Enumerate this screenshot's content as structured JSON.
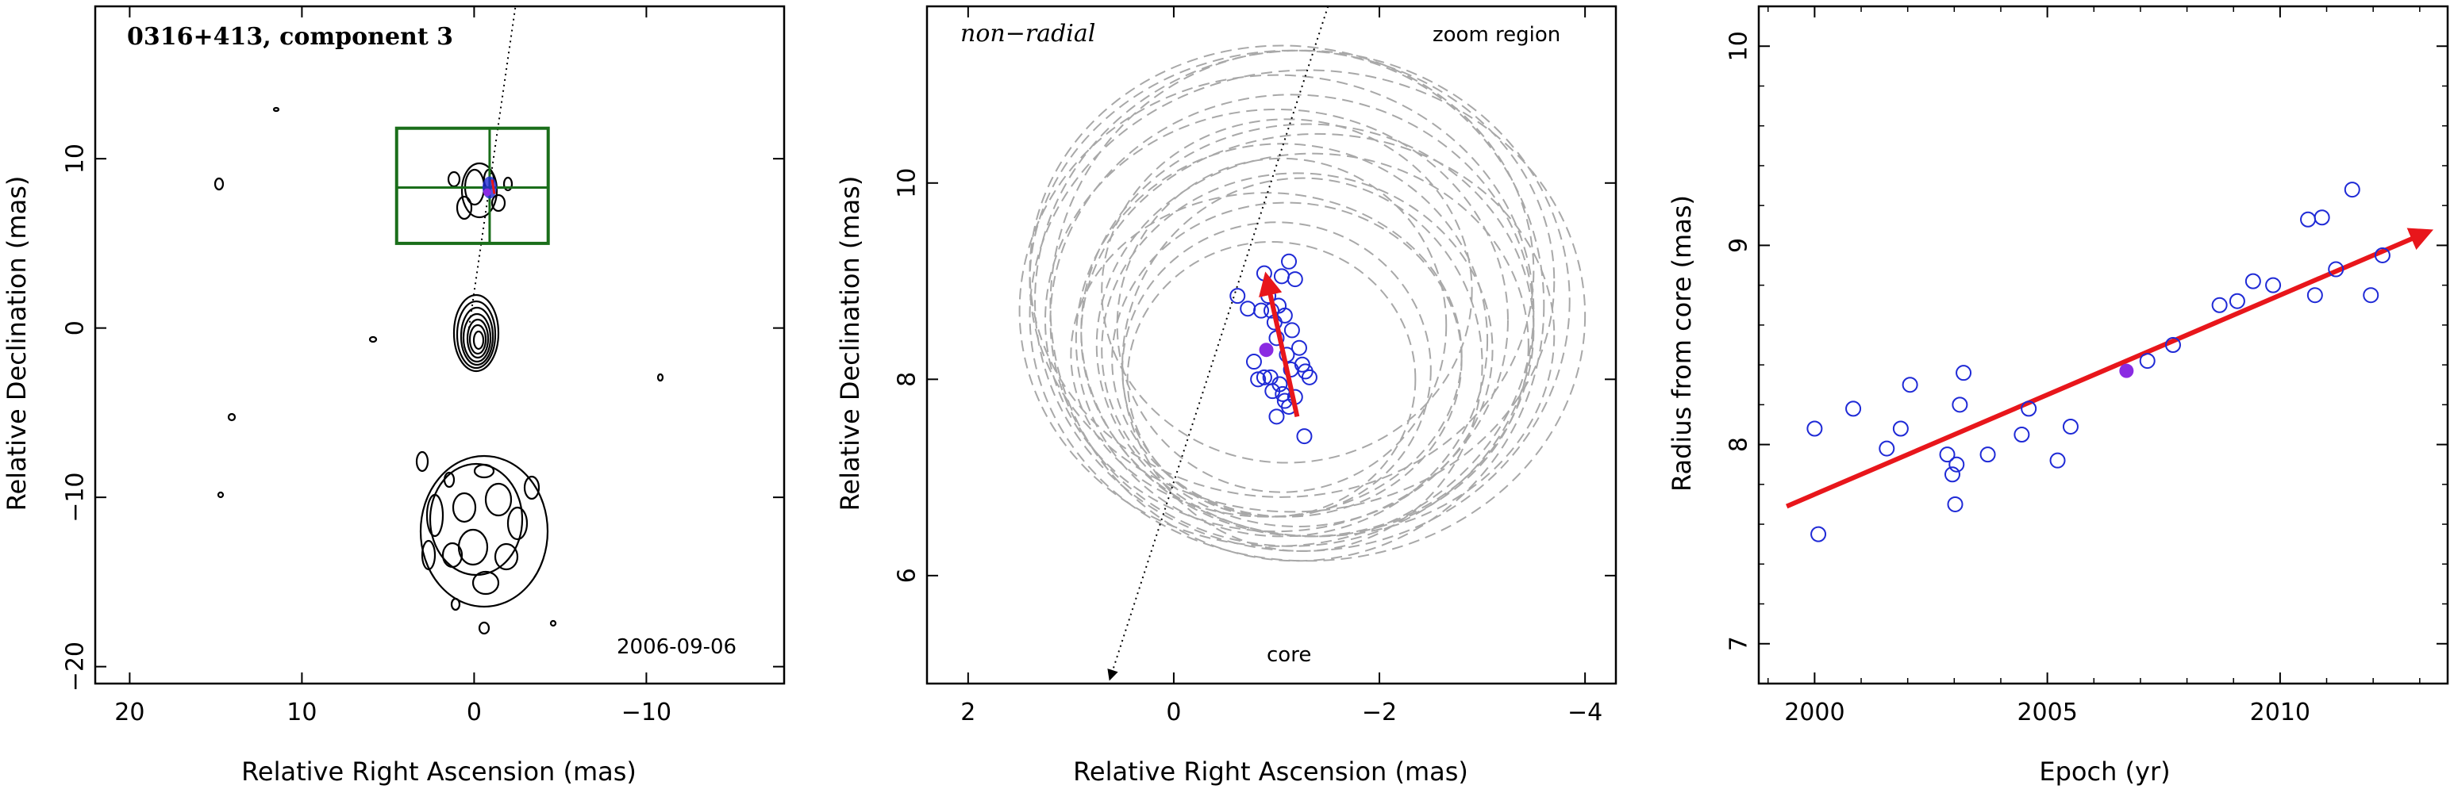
{
  "colors": {
    "axis": "#000000",
    "contour": "#000000",
    "zoom_box": "#1a6e1a",
    "open_points": "#1f2ad6",
    "filled_point": "#8a2be2",
    "arrow": "#e8161b",
    "circles": "#a8a8a8",
    "ridge_line": "#000000"
  },
  "chart_data": [
    {
      "type": "contour",
      "title": "0316+413, component 3",
      "date_label": "2006-09-06",
      "xlabel": "Relative Right Ascension (mas)",
      "ylabel": "Relative Declination (mas)",
      "xlim": [
        22,
        -18
      ],
      "ylim": [
        -21,
        19
      ],
      "xticks": [
        20,
        10,
        0,
        -10
      ],
      "xtick_labels": [
        "20",
        "10",
        "0",
        "−10"
      ],
      "yticks": [
        -20,
        -10,
        0,
        10
      ],
      "ytick_labels": [
        "−20",
        "−10",
        "0",
        "10"
      ],
      "zoom_box": {
        "x": [
          4.5,
          -4.3
        ],
        "y": [
          5.0,
          11.8
        ]
      },
      "zoom_cross": {
        "x": -0.9,
        "y": 8.3
      },
      "ridge_line": {
        "from": [
          0.3,
          0
        ],
        "to": [
          -2.4,
          19
        ]
      },
      "marker": {
        "x": -0.9,
        "y": 8.3
      }
    },
    {
      "type": "scatter",
      "title": "non−radial",
      "label": "zoom region",
      "core_label": "core",
      "xlabel": "Relative Right Ascension (mas)",
      "ylabel": "Relative Declination (mas)",
      "xlim": [
        2.4,
        -4.3
      ],
      "ylim": [
        4.9,
        11.8
      ],
      "xticks": [
        2,
        0,
        -2,
        -4
      ],
      "xtick_labels": [
        "2",
        "0",
        "−2",
        "−4"
      ],
      "yticks": [
        6,
        8,
        10
      ],
      "ytick_labels": [
        "6",
        "8",
        "10"
      ],
      "ridge_line": {
        "from": [
          -1.5,
          11.8
        ],
        "to": [
          0.62,
          4.95
        ]
      },
      "positions": {
        "x": [
          -1.12,
          -1.05,
          -0.88,
          -1.18,
          -0.92,
          -1.02,
          -0.95,
          -1.08,
          -0.98,
          -1.15,
          -0.85,
          -1.22,
          -1.0,
          -1.1,
          -0.78,
          -1.25,
          -1.32,
          -1.14,
          -0.94,
          -1.03,
          -1.28,
          -1.06,
          -0.96,
          -1.18,
          -0.82,
          -1.08,
          -1.12,
          -1.0,
          -0.72,
          -0.88,
          -0.62,
          -1.27
        ],
        "y": [
          9.2,
          9.05,
          9.08,
          9.02,
          8.85,
          8.75,
          8.7,
          8.65,
          8.58,
          8.5,
          8.7,
          8.32,
          8.42,
          8.25,
          8.18,
          8.15,
          8.02,
          8.1,
          8.02,
          7.95,
          8.08,
          7.85,
          7.88,
          7.82,
          8.0,
          7.78,
          7.72,
          7.62,
          8.72,
          8.02,
          8.85,
          7.42
        ]
      },
      "filled_point": {
        "x": -0.9,
        "y": 8.3
      },
      "motion_arrow": {
        "from": [
          -1.2,
          7.62
        ],
        "to": [
          -0.9,
          9.05
        ]
      },
      "error_circles": [
        {
          "cx": -1.0,
          "cy": 8.1,
          "rx": 1.5,
          "ry": 1.5
        },
        {
          "cx": -1.1,
          "cy": 8.2,
          "rx": 1.7,
          "ry": 1.6
        },
        {
          "cx": -1.2,
          "cy": 8.3,
          "rx": 1.9,
          "ry": 1.8
        },
        {
          "cx": -1.05,
          "cy": 8.4,
          "rx": 2.0,
          "ry": 2.0
        },
        {
          "cx": -1.3,
          "cy": 8.5,
          "rx": 2.2,
          "ry": 2.1
        },
        {
          "cx": -1.15,
          "cy": 8.6,
          "rx": 2.35,
          "ry": 2.3
        },
        {
          "cx": -1.0,
          "cy": 8.7,
          "rx": 2.5,
          "ry": 2.4
        },
        {
          "cx": -1.25,
          "cy": 8.8,
          "rx": 2.6,
          "ry": 2.55
        },
        {
          "cx": -1.1,
          "cy": 8.9,
          "rx": 1.8,
          "ry": 1.75
        },
        {
          "cx": -0.95,
          "cy": 8.0,
          "rx": 1.4,
          "ry": 1.4
        },
        {
          "cx": -1.35,
          "cy": 8.35,
          "rx": 2.1,
          "ry": 1.95
        },
        {
          "cx": -1.2,
          "cy": 8.75,
          "rx": 2.4,
          "ry": 2.6
        },
        {
          "cx": -1.05,
          "cy": 8.55,
          "rx": 1.6,
          "ry": 1.7
        },
        {
          "cx": -1.4,
          "cy": 8.45,
          "rx": 2.3,
          "ry": 2.05
        },
        {
          "cx": -0.9,
          "cy": 8.25,
          "rx": 1.9,
          "ry": 1.65
        },
        {
          "cx": -1.25,
          "cy": 8.15,
          "rx": 1.75,
          "ry": 1.9
        },
        {
          "cx": -1.15,
          "cy": 9.0,
          "rx": 2.55,
          "ry": 2.35
        },
        {
          "cx": -1.05,
          "cy": 9.1,
          "rx": 2.45,
          "ry": 2.3
        },
        {
          "cx": -1.3,
          "cy": 8.65,
          "rx": 2.7,
          "ry": 2.5
        },
        {
          "cx": -1.0,
          "cy": 8.6,
          "rx": 2.25,
          "ry": 2.15
        }
      ]
    },
    {
      "type": "scatter",
      "xlabel": "Epoch (yr)",
      "ylabel": "Radius from core (mas)",
      "xlim": [
        1998.8,
        2013.6
      ],
      "ylim": [
        6.8,
        10.2
      ],
      "xticks": [
        2000,
        2005,
        2010
      ],
      "xtick_labels": [
        "2000",
        "2005",
        "2010"
      ],
      "yticks": [
        7,
        8,
        9,
        10
      ],
      "ytick_labels": [
        "7",
        "8",
        "9",
        "10"
      ],
      "series": [
        {
          "x": [
            2000.0,
            2000.08,
            2000.83,
            2001.55,
            2001.85,
            2002.05,
            2002.85,
            2002.96,
            2003.02,
            2003.05,
            2003.12,
            2003.2,
            2003.72,
            2004.45,
            2004.6,
            2005.22,
            2005.5,
            2007.15,
            2007.7,
            2008.7,
            2009.08,
            2009.42,
            2009.85,
            2010.6,
            2010.75,
            2010.9,
            2011.2,
            2011.55,
            2011.95,
            2012.2
          ],
          "y": [
            8.08,
            7.55,
            8.18,
            7.98,
            8.08,
            8.3,
            7.95,
            7.85,
            7.7,
            7.9,
            8.2,
            8.36,
            7.95,
            8.05,
            8.18,
            7.92,
            8.09,
            8.42,
            8.5,
            8.7,
            8.72,
            8.82,
            8.8,
            9.13,
            8.75,
            9.14,
            8.88,
            9.28,
            8.75,
            8.95
          ]
        }
      ],
      "filled_point": {
        "x": 2006.7,
        "y": 8.37
      },
      "trend_arrow": {
        "from": [
          1999.4,
          7.69
        ],
        "to": [
          2013.2,
          9.07
        ]
      }
    }
  ]
}
